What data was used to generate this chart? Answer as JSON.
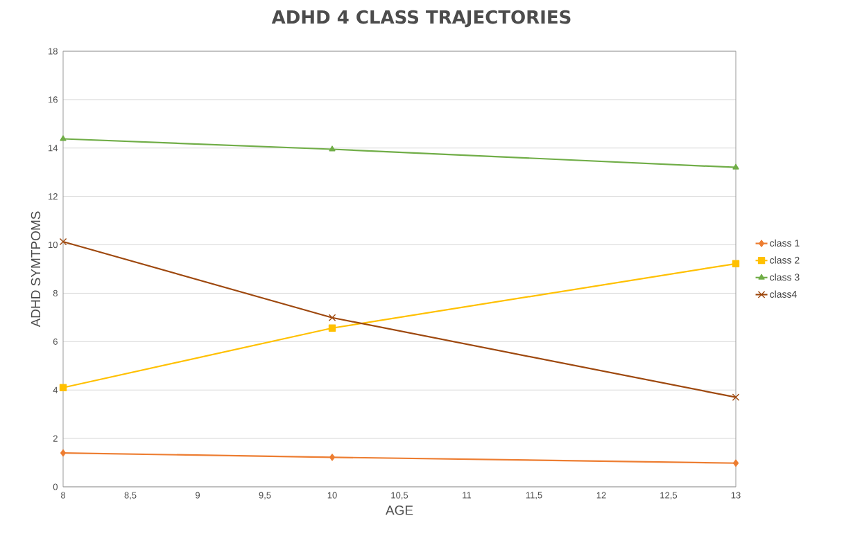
{
  "chart_data": {
    "type": "line",
    "title": "ADHD 4 CLASS TRAJECTORIES",
    "xlabel": "AGE",
    "ylabel": "ADHD SYMTPOMS",
    "x": [
      8,
      10,
      13
    ],
    "series": [
      {
        "name": "class 1",
        "color": "#ed7d31",
        "marker": "diamond",
        "values": [
          1.4,
          1.22,
          0.98
        ]
      },
      {
        "name": "class 2",
        "color": "#ffc000",
        "marker": "square",
        "values": [
          4.1,
          6.56,
          9.22
        ]
      },
      {
        "name": "class 3",
        "color": "#70ad47",
        "marker": "triangle",
        "values": [
          14.38,
          13.95,
          13.2
        ]
      },
      {
        "name": "class4",
        "color": "#9e480e",
        "marker": "cross",
        "values": [
          10.13,
          6.99,
          3.7
        ]
      }
    ],
    "xlim": [
      8,
      13
    ],
    "xticks": [
      8,
      {
        "value": 8.5,
        "label": "8,5"
      },
      9,
      {
        "value": 9.5,
        "label": "9,5"
      },
      10,
      {
        "value": 10.5,
        "label": "10,5"
      },
      11,
      {
        "value": 11.5,
        "label": "11,5"
      },
      12,
      {
        "value": 12.5,
        "label": "12,5"
      },
      13
    ],
    "ylim": [
      0,
      18
    ],
    "yticks": [
      0,
      2,
      4,
      6,
      8,
      10,
      12,
      14,
      16,
      18
    ],
    "grid": "y",
    "legend": "right",
    "line_style": "solid"
  }
}
